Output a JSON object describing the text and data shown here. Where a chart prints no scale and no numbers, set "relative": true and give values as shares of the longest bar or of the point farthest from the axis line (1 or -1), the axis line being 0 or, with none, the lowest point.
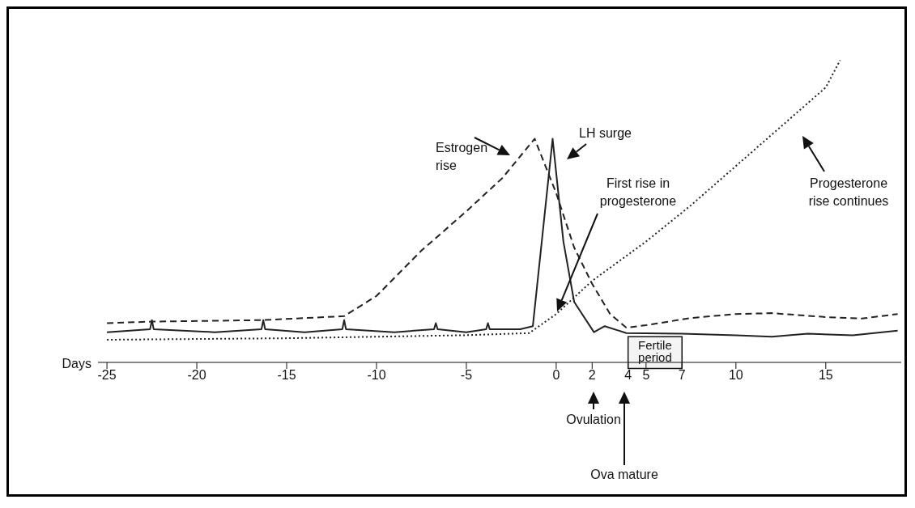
{
  "chart_data": {
    "type": "line",
    "relative": true,
    "xlabel": "Days",
    "xlim": [
      -25.5,
      19.2
    ],
    "xticks": [
      -25,
      -20,
      -15,
      -10,
      -5,
      0,
      2,
      4,
      5,
      7,
      10,
      15
    ],
    "marker": "none",
    "series": [
      {
        "color": "#222222",
        "line_style": "dashed",
        "x": [
          -25,
          -22.5,
          -16.3,
          -11.8,
          -10,
          -7.5,
          -5,
          -3,
          -1.2,
          0,
          1,
          2,
          3,
          3.9,
          5,
          7.5,
          10,
          12,
          15,
          17,
          19
        ],
        "values": [
          0.13,
          0.135,
          0.14,
          0.153,
          0.22,
          0.37,
          0.5,
          0.61,
          0.74,
          0.56,
          0.38,
          0.26,
          0.16,
          0.115,
          0.123,
          0.147,
          0.16,
          0.163,
          0.15,
          0.145,
          0.16
        ]
      },
      {
        "color": "#222222",
        "line_style": "solid",
        "x": [
          -25,
          -22.6,
          -22.5,
          -22.4,
          -19,
          -16.4,
          -16.3,
          -16.2,
          -14,
          -11.9,
          -11.8,
          -11.7,
          -9,
          -6.8,
          -6.7,
          -6.6,
          -5,
          -3.9,
          -3.8,
          -3.7,
          -2,
          -1.3,
          -0.2,
          0.4,
          1,
          2.1,
          2.7,
          3.9,
          7,
          10,
          12,
          14,
          16.5,
          19
        ],
        "values": [
          0.1,
          0.11,
          0.14,
          0.11,
          0.1,
          0.11,
          0.14,
          0.11,
          0.1,
          0.11,
          0.14,
          0.11,
          0.1,
          0.11,
          0.13,
          0.11,
          0.1,
          0.11,
          0.13,
          0.11,
          0.11,
          0.12,
          0.74,
          0.4,
          0.2,
          0.1,
          0.12,
          0.097,
          0.095,
          0.09,
          0.085,
          0.095,
          0.09,
          0.105
        ]
      },
      {
        "color": "#222222",
        "line_style": "dotted",
        "x": [
          -25,
          -15,
          -10,
          -5,
          -1.5,
          0,
          2,
          5,
          7.5,
          10,
          12.5,
          15,
          15.8
        ],
        "values": [
          0.075,
          0.08,
          0.085,
          0.09,
          0.097,
          0.16,
          0.27,
          0.4,
          0.52,
          0.65,
          0.78,
          0.91,
          1
        ]
      }
    ],
    "bands": [
      {
        "axis": "x",
        "from": 4,
        "to": 7,
        "label": "Fertile period"
      }
    ],
    "annotations": [
      "Estrogen rise",
      "LH surge",
      "First rise in progesterone",
      "Progesterone rise continues",
      "Ovulation",
      "Ova mature"
    ]
  }
}
